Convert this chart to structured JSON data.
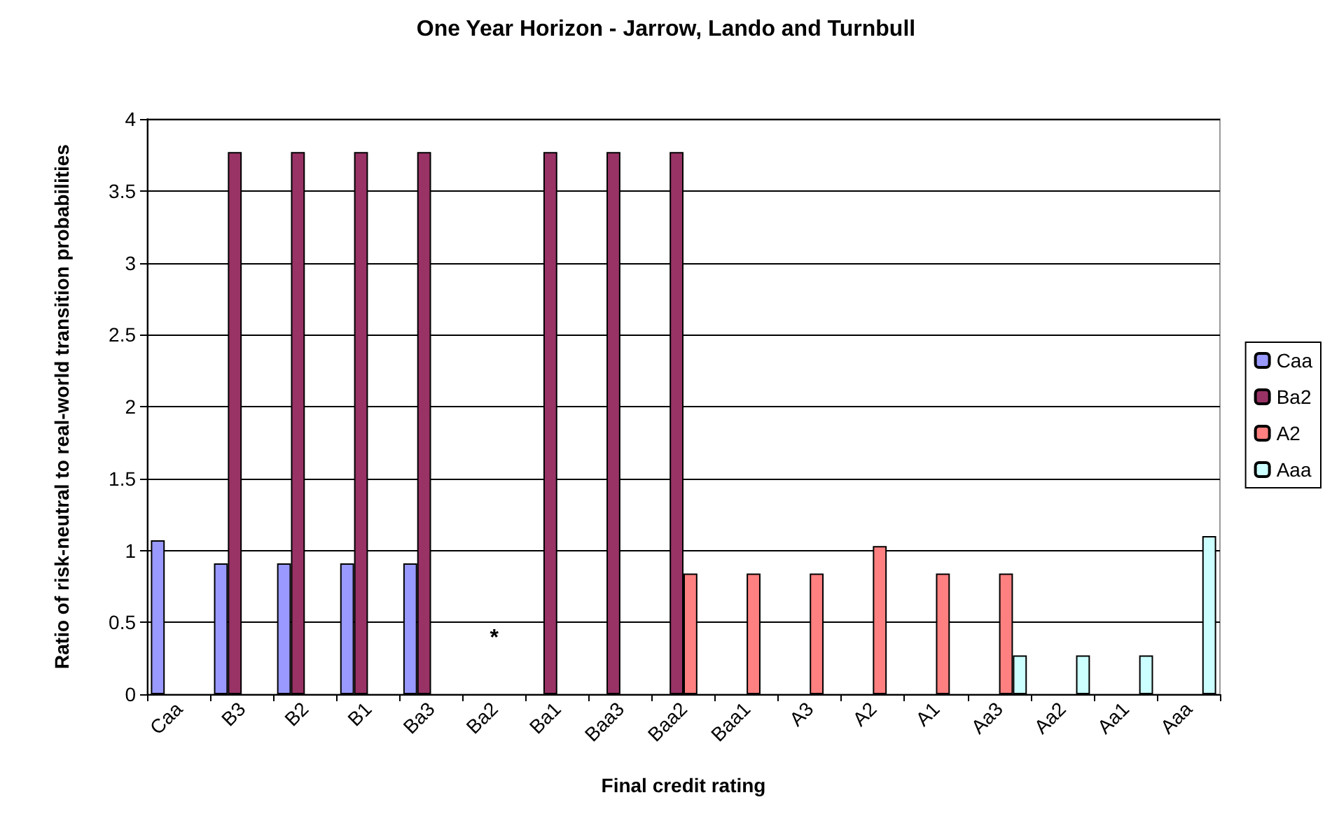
{
  "chart_data": {
    "type": "bar",
    "title": "One Year Horizon - Jarrow, Lando and Turnbull",
    "xlabel": "Final credit rating",
    "ylabel": "Ratio of risk-neutral to real-world transition probabilities",
    "categories": [
      "Caa",
      "B3",
      "B2",
      "B1",
      "Ba3",
      "Ba2",
      "Ba1",
      "Baa3",
      "Baa2",
      "Baa1",
      "A3",
      "A2",
      "A1",
      "Aa3",
      "Aa2",
      "Aa1",
      "Aaa"
    ],
    "series": [
      {
        "name": "Caa",
        "color": "#9999ff",
        "values": [
          1.07,
          0.91,
          0.91,
          0.91,
          0.91,
          null,
          null,
          null,
          null,
          null,
          null,
          null,
          null,
          null,
          null,
          null,
          null
        ]
      },
      {
        "name": "Ba2",
        "color": "#993366",
        "values": [
          null,
          3.77,
          3.77,
          3.77,
          3.77,
          null,
          3.77,
          3.77,
          3.77,
          null,
          null,
          null,
          null,
          null,
          null,
          null,
          null
        ]
      },
      {
        "name": "A2",
        "color": "#ff8080",
        "values": [
          null,
          null,
          null,
          null,
          null,
          null,
          null,
          null,
          0.84,
          0.84,
          0.84,
          1.03,
          0.84,
          0.84,
          null,
          null,
          null
        ]
      },
      {
        "name": "Aaa",
        "color": "#ccffff",
        "values": [
          null,
          null,
          null,
          null,
          null,
          null,
          null,
          null,
          null,
          null,
          null,
          null,
          null,
          0.27,
          0.27,
          0.27,
          1.1
        ]
      }
    ],
    "annotations": [
      "*"
    ],
    "ylim": [
      0,
      4
    ],
    "yticks": [
      0,
      0.5,
      1,
      1.5,
      2,
      2.5,
      3,
      3.5,
      4
    ],
    "grid": "y",
    "legend": "right"
  }
}
